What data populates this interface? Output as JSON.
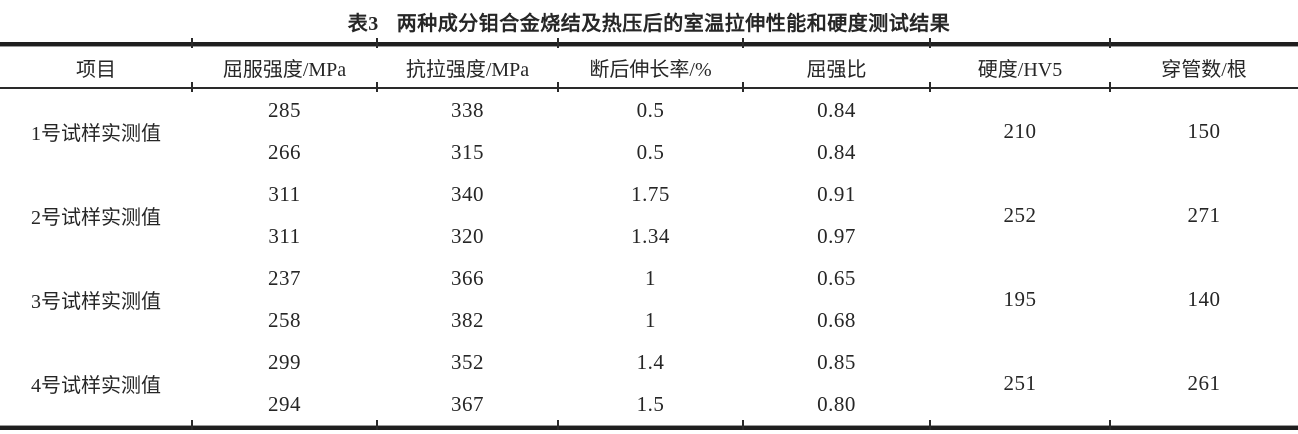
{
  "title": {
    "tag": "表3",
    "text": "两种成分钼合金烧结及热压后的室温拉伸性能和硬度测试结果"
  },
  "table": {
    "headers": [
      "项目",
      "屈服强度/MPa",
      "抗拉强度/MPa",
      "断后伸长率/%",
      "屈强比",
      "硬度/HV5",
      "穿管数/根"
    ],
    "groups": [
      {
        "label": "1号试样实测值",
        "rows": [
          [
            "285",
            "338",
            "0.5",
            "0.84"
          ],
          [
            "266",
            "315",
            "0.5",
            "0.84"
          ]
        ],
        "hardness": "210",
        "tubes": "150"
      },
      {
        "label": "2号试样实测值",
        "rows": [
          [
            "311",
            "340",
            "1.75",
            "0.91"
          ],
          [
            "311",
            "320",
            "1.34",
            "0.97"
          ]
        ],
        "hardness": "252",
        "tubes": "271"
      },
      {
        "label": "3号试样实测值",
        "rows": [
          [
            "237",
            "366",
            "1",
            "0.65"
          ],
          [
            "258",
            "382",
            "1",
            "0.68"
          ]
        ],
        "hardness": "195",
        "tubes": "140"
      },
      {
        "label": "4号试样实测值",
        "rows": [
          [
            "299",
            "352",
            "1.4",
            "0.85"
          ],
          [
            "294",
            "367",
            "1.5",
            "0.80"
          ]
        ],
        "hardness": "251",
        "tubes": "261"
      }
    ]
  },
  "colors": {
    "background": "#ffffff",
    "text": "#262626",
    "rule_dark": "#1f1f1f",
    "rule_light": "#9a9a9a"
  }
}
